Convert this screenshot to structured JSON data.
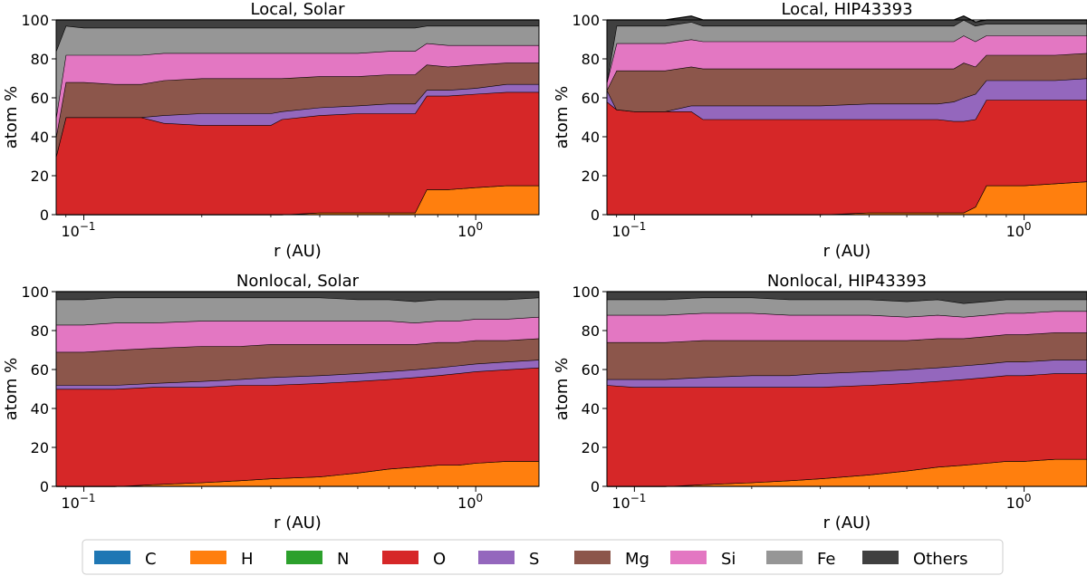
{
  "colors": {
    "C": "#1f77b4",
    "H": "#ff7f0e",
    "N": "#2ca02c",
    "O": "#d62728",
    "S": "#9467bd",
    "Mg": "#8c564b",
    "Si": "#e377c2",
    "Fe": "#969696",
    "Others": "#404040"
  },
  "chart_data": [
    {
      "type": "area",
      "title": "Local, Solar",
      "xlabel": "r (AU)",
      "ylabel": "atom %",
      "xscale": "log",
      "xlim": [
        0.085,
        1.45
      ],
      "ylim": [
        0,
        100
      ],
      "xticks": [
        {
          "value": 0.1,
          "label": "10",
          "exp": "−1"
        },
        {
          "value": 1.0,
          "label": "10",
          "exp": "0"
        }
      ],
      "yticks": [
        0,
        20,
        40,
        60,
        80,
        100
      ],
      "x": [
        0.085,
        0.09,
        0.1,
        0.12,
        0.14,
        0.16,
        0.2,
        0.25,
        0.3,
        0.32,
        0.4,
        0.5,
        0.6,
        0.66,
        0.7,
        0.75,
        0.85,
        1.0,
        1.2,
        1.45
      ],
      "series": [
        {
          "name": "C",
          "values": [
            0,
            0,
            0,
            0,
            0,
            0,
            0,
            0,
            0,
            0,
            0,
            0,
            0,
            0,
            0,
            0,
            0,
            0,
            0,
            0
          ]
        },
        {
          "name": "H",
          "values": [
            0,
            0,
            0,
            0,
            0,
            0,
            0,
            0,
            0,
            0,
            1,
            1,
            1,
            1,
            1,
            13,
            13,
            14,
            15,
            15
          ]
        },
        {
          "name": "N",
          "values": [
            0,
            0,
            0,
            0,
            0,
            0,
            0,
            0,
            0,
            0,
            0,
            0,
            0,
            0,
            0,
            0,
            0,
            0,
            0,
            0
          ]
        },
        {
          "name": "O",
          "values": [
            30,
            50,
            50,
            50,
            50,
            47,
            46,
            46,
            46,
            49,
            50,
            51,
            51,
            51,
            51,
            48,
            48,
            48,
            48,
            48
          ]
        },
        {
          "name": "S",
          "values": [
            0,
            0,
            0,
            0,
            0,
            4,
            6,
            6,
            6,
            4,
            4,
            4,
            5,
            5,
            5,
            3,
            3,
            3,
            4,
            4
          ]
        },
        {
          "name": "Mg",
          "values": [
            10,
            18,
            18,
            17,
            17,
            18,
            18,
            18,
            18,
            17,
            16,
            15,
            15,
            15,
            15,
            13,
            12,
            12,
            11,
            11
          ]
        },
        {
          "name": "Si",
          "values": [
            10,
            14,
            14,
            15,
            15,
            14,
            13,
            13,
            13,
            13,
            12,
            12,
            12,
            12,
            12,
            11,
            11,
            10,
            9,
            9
          ]
        },
        {
          "name": "Fe",
          "values": [
            34,
            15,
            14,
            14,
            14,
            13,
            13,
            13,
            13,
            13,
            13,
            13,
            12,
            12,
            12,
            9,
            10,
            10,
            10,
            10
          ]
        },
        {
          "name": "Others",
          "values": [
            16,
            3,
            4,
            4,
            4,
            4,
            4,
            4,
            4,
            4,
            4,
            4,
            4,
            4,
            4,
            3,
            3,
            3,
            3,
            3
          ]
        }
      ]
    },
    {
      "type": "area",
      "title": "Local, HIP43393",
      "xlabel": "r (AU)",
      "ylabel": "atom %",
      "xscale": "log",
      "xlim": [
        0.085,
        1.45
      ],
      "ylim": [
        0,
        100
      ],
      "xticks": [
        {
          "value": 0.1,
          "label": "10",
          "exp": "−1"
        },
        {
          "value": 1.0,
          "label": "10",
          "exp": "0"
        }
      ],
      "yticks": [
        0,
        20,
        40,
        60,
        80,
        100
      ],
      "x": [
        0.085,
        0.09,
        0.1,
        0.12,
        0.14,
        0.15,
        0.2,
        0.3,
        0.4,
        0.5,
        0.6,
        0.66,
        0.7,
        0.75,
        0.8,
        0.9,
        1.0,
        1.2,
        1.45
      ],
      "series": [
        {
          "name": "C",
          "values": [
            0,
            0,
            0,
            0,
            0,
            0,
            0,
            0,
            0,
            0,
            0,
            0,
            0,
            0,
            0,
            0,
            0,
            0,
            0
          ]
        },
        {
          "name": "H",
          "values": [
            0,
            0,
            0,
            0,
            0,
            0,
            0,
            0,
            1,
            1,
            1,
            1,
            1,
            4,
            15,
            15,
            15,
            16,
            17
          ]
        },
        {
          "name": "N",
          "values": [
            0,
            0,
            0,
            0,
            0,
            0,
            0,
            0,
            0,
            0,
            0,
            0,
            0,
            0,
            0,
            0,
            0,
            0,
            0
          ]
        },
        {
          "name": "O",
          "values": [
            58,
            54,
            53,
            53,
            53,
            49,
            49,
            49,
            48,
            48,
            48,
            47,
            47,
            45,
            44,
            44,
            44,
            43,
            42
          ]
        },
        {
          "name": "S",
          "values": [
            6,
            0,
            0,
            0,
            3,
            7,
            7,
            7,
            8,
            8,
            8,
            10,
            12,
            13,
            10,
            10,
            10,
            10,
            11
          ]
        },
        {
          "name": "Mg",
          "values": [
            0,
            20,
            21,
            21,
            20,
            19,
            19,
            19,
            18,
            18,
            18,
            17,
            18,
            14,
            13,
            13,
            13,
            13,
            13
          ]
        },
        {
          "name": "Si",
          "values": [
            4,
            14,
            14,
            14,
            14,
            14,
            14,
            14,
            14,
            14,
            14,
            14,
            14,
            13,
            10,
            10,
            10,
            10,
            9
          ]
        },
        {
          "name": "Fe",
          "values": [
            0,
            9,
            9,
            9,
            9,
            8,
            8,
            8,
            8,
            8,
            8,
            8,
            8,
            8,
            6,
            6,
            6,
            6,
            6
          ]
        },
        {
          "name": "Others",
          "values": [
            32,
            3,
            3,
            3,
            3,
            3,
            3,
            3,
            3,
            3,
            3,
            3,
            2,
            2,
            2,
            2,
            2,
            2,
            2
          ]
        }
      ]
    },
    {
      "type": "area",
      "title": "Nonlocal, Solar",
      "xlabel": "r (AU)",
      "ylabel": "atom %",
      "xscale": "log",
      "xlim": [
        0.085,
        1.45
      ],
      "ylim": [
        0,
        100
      ],
      "xticks": [
        {
          "value": 0.1,
          "label": "10",
          "exp": "−1"
        },
        {
          "value": 1.0,
          "label": "10",
          "exp": "0"
        }
      ],
      "yticks": [
        0,
        20,
        40,
        60,
        80,
        100
      ],
      "x": [
        0.085,
        0.1,
        0.12,
        0.15,
        0.2,
        0.25,
        0.3,
        0.4,
        0.5,
        0.6,
        0.7,
        0.8,
        0.9,
        1.0,
        1.2,
        1.45
      ],
      "series": [
        {
          "name": "C",
          "values": [
            0,
            0,
            0,
            0,
            0,
            0,
            0,
            0,
            0,
            0,
            0,
            0,
            0,
            0,
            0,
            0
          ]
        },
        {
          "name": "H",
          "values": [
            0,
            0,
            0,
            1,
            2,
            3,
            4,
            5,
            7,
            9,
            10,
            11,
            11,
            12,
            13,
            13
          ]
        },
        {
          "name": "N",
          "values": [
            0,
            0,
            0,
            0,
            0,
            0,
            0,
            0,
            0,
            0,
            0,
            0,
            0,
            0,
            0,
            0
          ]
        },
        {
          "name": "O",
          "values": [
            50,
            50,
            50,
            50,
            49,
            49,
            48,
            48,
            47,
            46,
            46,
            46,
            47,
            47,
            47,
            48
          ]
        },
        {
          "name": "S",
          "values": [
            2,
            2,
            2,
            2,
            3,
            3,
            4,
            4,
            4,
            4,
            4,
            4,
            4,
            4,
            4,
            4
          ]
        },
        {
          "name": "Mg",
          "values": [
            17,
            17,
            18,
            18,
            18,
            17,
            17,
            16,
            15,
            14,
            13,
            13,
            12,
            12,
            11,
            11
          ]
        },
        {
          "name": "Si",
          "values": [
            14,
            14,
            14,
            13,
            13,
            13,
            12,
            12,
            12,
            12,
            11,
            11,
            11,
            11,
            11,
            11
          ]
        },
        {
          "name": "Fe",
          "values": [
            13,
            13,
            13,
            13,
            12,
            12,
            12,
            12,
            11,
            11,
            11,
            11,
            11,
            10,
            10,
            10
          ]
        },
        {
          "name": "Others",
          "values": [
            4,
            4,
            3,
            3,
            3,
            3,
            3,
            3,
            4,
            4,
            5,
            4,
            4,
            4,
            4,
            3
          ]
        }
      ]
    },
    {
      "type": "area",
      "title": "Nonlocal, HIP43393",
      "xlabel": "r (AU)",
      "ylabel": "atom %",
      "xscale": "log",
      "xlim": [
        0.085,
        1.45
      ],
      "ylim": [
        0,
        100
      ],
      "xticks": [
        {
          "value": 0.1,
          "label": "10",
          "exp": "−1"
        },
        {
          "value": 1.0,
          "label": "10",
          "exp": "0"
        }
      ],
      "yticks": [
        0,
        20,
        40,
        60,
        80,
        100
      ],
      "x": [
        0.085,
        0.1,
        0.12,
        0.15,
        0.2,
        0.25,
        0.3,
        0.4,
        0.5,
        0.6,
        0.7,
        0.8,
        0.9,
        1.0,
        1.2,
        1.45
      ],
      "series": [
        {
          "name": "C",
          "values": [
            0,
            0,
            0,
            0,
            0,
            0,
            0,
            0,
            0,
            0,
            0,
            0,
            0,
            0,
            0,
            0
          ]
        },
        {
          "name": "H",
          "values": [
            0,
            0,
            0,
            1,
            2,
            3,
            4,
            6,
            8,
            10,
            11,
            12,
            13,
            13,
            14,
            14
          ]
        },
        {
          "name": "N",
          "values": [
            0,
            0,
            0,
            0,
            0,
            0,
            0,
            0,
            0,
            0,
            0,
            0,
            0,
            0,
            0,
            0
          ]
        },
        {
          "name": "O",
          "values": [
            52,
            51,
            51,
            50,
            49,
            48,
            47,
            46,
            45,
            44,
            44,
            44,
            44,
            44,
            44,
            44
          ]
        },
        {
          "name": "S",
          "values": [
            3,
            4,
            4,
            5,
            6,
            6,
            7,
            7,
            7,
            7,
            7,
            7,
            7,
            7,
            7,
            7
          ]
        },
        {
          "name": "Mg",
          "values": [
            19,
            19,
            19,
            19,
            18,
            18,
            17,
            16,
            15,
            15,
            14,
            14,
            14,
            14,
            14,
            14
          ]
        },
        {
          "name": "Si",
          "values": [
            14,
            14,
            14,
            14,
            14,
            13,
            13,
            13,
            12,
            12,
            11,
            11,
            11,
            11,
            11,
            11
          ]
        },
        {
          "name": "Fe",
          "values": [
            8,
            8,
            8,
            8,
            8,
            8,
            8,
            8,
            8,
            8,
            7,
            7,
            7,
            7,
            6,
            6
          ]
        },
        {
          "name": "Others",
          "values": [
            4,
            4,
            4,
            3,
            3,
            4,
            4,
            4,
            5,
            4,
            6,
            5,
            4,
            4,
            4,
            4
          ]
        }
      ]
    }
  ],
  "legend": {
    "placement": "bottom-center",
    "entries": [
      "C",
      "H",
      "N",
      "O",
      "S",
      "Mg",
      "Si",
      "Fe",
      "Others"
    ]
  }
}
